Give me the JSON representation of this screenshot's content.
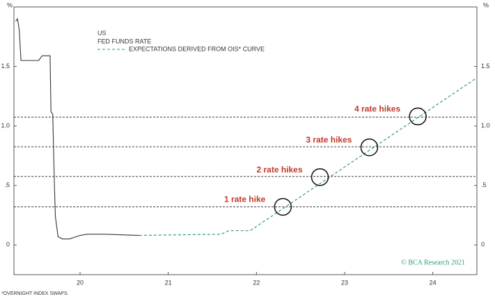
{
  "chart_data": {
    "type": "line",
    "legend_title": "US",
    "y_label": "%",
    "footnote": "*OVERNIGHT INDEX SWAPS.",
    "source": "© BCA Research 2021",
    "xlim": [
      19.25,
      24.5
    ],
    "xticks": [
      20,
      21,
      22,
      23,
      24
    ],
    "ylim": [
      -0.25,
      2.0
    ],
    "yticks": [
      0,
      {
        "value": 0.5,
        "label": ".5"
      },
      {
        "value": 1.0,
        "label": "1.0"
      },
      1.5
    ],
    "series": [
      {
        "name": "FED FUNDS RATE",
        "color": "#333333",
        "dashed": false,
        "x": [
          19.27,
          19.29,
          19.31,
          19.33,
          19.53,
          19.57,
          19.66,
          19.67,
          19.69,
          19.71,
          19.72,
          19.75,
          19.8,
          19.88,
          20.0,
          20.08,
          20.28,
          20.67
        ],
        "values": [
          1.88,
          1.9,
          1.81,
          1.55,
          1.55,
          1.59,
          1.59,
          1.12,
          1.1,
          0.48,
          0.24,
          0.07,
          0.05,
          0.05,
          0.08,
          0.09,
          0.09,
          0.08
        ]
      },
      {
        "name": "EXPECTATIONS DERIVED FROM OIS* CURVE",
        "color": "#2e9e6b",
        "dashed": true,
        "x": [
          20.67,
          21.6,
          21.69,
          21.93,
          24.49
        ],
        "values": [
          0.08,
          0.09,
          0.12,
          0.12,
          1.4
        ]
      }
    ],
    "reference_lines": [
      0.32,
      0.575,
      0.825,
      1.075
    ],
    "annotations": [
      {
        "text": "1 rate hike",
        "x": 22.3,
        "y": 0.32
      },
      {
        "text": "2 rate hikes",
        "x": 22.72,
        "y": 0.57
      },
      {
        "text": "3 rate hikes",
        "x": 23.28,
        "y": 0.82
      },
      {
        "text": "4 rate hikes",
        "x": 23.83,
        "y": 1.08
      }
    ]
  }
}
